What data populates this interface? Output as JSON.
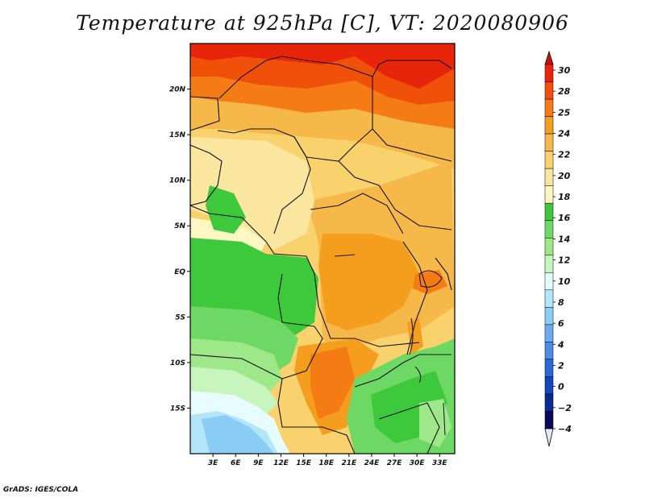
{
  "title": "Temperature at 925hPa [C], VT: 2020080906",
  "footer": "GrADS: IGES/COLA",
  "map": {
    "lon_range": [
      0,
      35
    ],
    "lat_range": [
      -20,
      25
    ],
    "lat_ticks": [
      {
        "value": 20,
        "label": "20N"
      },
      {
        "value": 15,
        "label": "15N"
      },
      {
        "value": 10,
        "label": "10N"
      },
      {
        "value": 5,
        "label": "5N"
      },
      {
        "value": 0,
        "label": "EQ"
      },
      {
        "value": -5,
        "label": "5S"
      },
      {
        "value": -10,
        "label": "10S"
      },
      {
        "value": -15,
        "label": "15S"
      }
    ],
    "lon_ticks": [
      {
        "value": 3,
        "label": "3E"
      },
      {
        "value": 6,
        "label": "6E"
      },
      {
        "value": 9,
        "label": "9E"
      },
      {
        "value": 12,
        "label": "12E"
      },
      {
        "value": 15,
        "label": "15E"
      },
      {
        "value": 18,
        "label": "18E"
      },
      {
        "value": 21,
        "label": "21E"
      },
      {
        "value": 24,
        "label": "24E"
      },
      {
        "value": 27,
        "label": "27E"
      },
      {
        "value": 30,
        "label": "30E"
      },
      {
        "value": 33,
        "label": "33E"
      }
    ]
  },
  "colorbar": {
    "labels": [
      "30",
      "28",
      "25",
      "24",
      "22",
      "20",
      "18",
      "16",
      "14",
      "12",
      "10",
      "8",
      "6",
      "4",
      "2",
      "0",
      "−2",
      "−4"
    ],
    "colors_top_to_bottom": [
      "#e8240a",
      "#f0500a",
      "#f57c14",
      "#f59e1e",
      "#f7b84a",
      "#f9d26e",
      "#fbe6a0",
      "#fdf7c4",
      "#3ec83c",
      "#6ed865",
      "#9ee88a",
      "#c8f4bd",
      "#e6fcff",
      "#b4e6fa",
      "#8ccdf5",
      "#6eaaf0",
      "#4b8ce6",
      "#2a6ad8",
      "#1446c0",
      "#0a2a90",
      "#050a5a"
    ],
    "overflow_high_color": "#c8140a",
    "overflow_low_color": "#e6e6ff"
  },
  "regions": [
    {
      "name": "sahara-north",
      "color": "#e8240a"
    },
    {
      "name": "sahel-orange",
      "color": "#f57c14"
    },
    {
      "name": "savanna-yellow",
      "color": "#f9d26e"
    },
    {
      "name": "equatorial-green",
      "color": "#3ec83c"
    },
    {
      "name": "southwest-ocean",
      "color": "#8ccdf5"
    }
  ]
}
